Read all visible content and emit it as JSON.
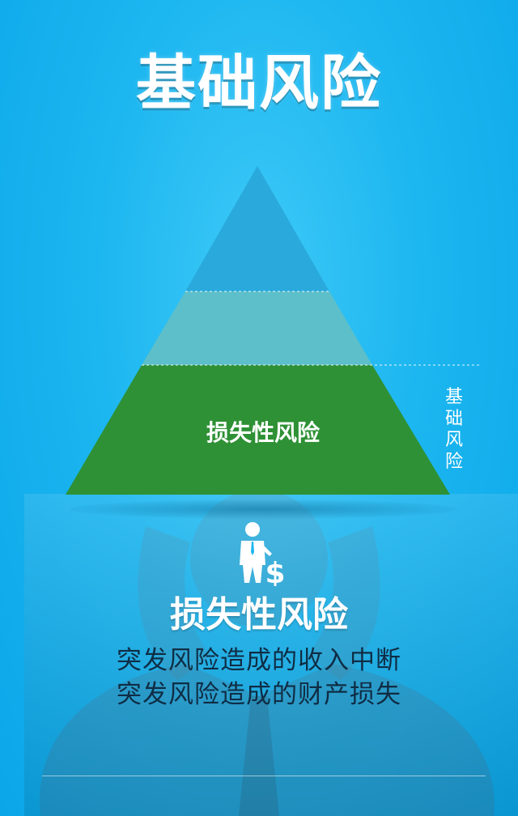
{
  "title": "基础风险",
  "pyramid": {
    "bottom_label": "损失性风险",
    "side_label": "基础风险"
  },
  "icons": {
    "person": "businessman-dollar-icon"
  },
  "section": {
    "heading": "损失性风险",
    "lines": [
      "突发风险造成的收入中断",
      "突发风险造成的财产损失"
    ]
  },
  "colors": {
    "background": "#1cb6f0",
    "pyramid_top": "#29a9dc",
    "pyramid_middle": "#5dbfc9",
    "pyramid_bottom": "#2e9135",
    "text_dark": "#0f2d45",
    "white": "#ffffff"
  }
}
